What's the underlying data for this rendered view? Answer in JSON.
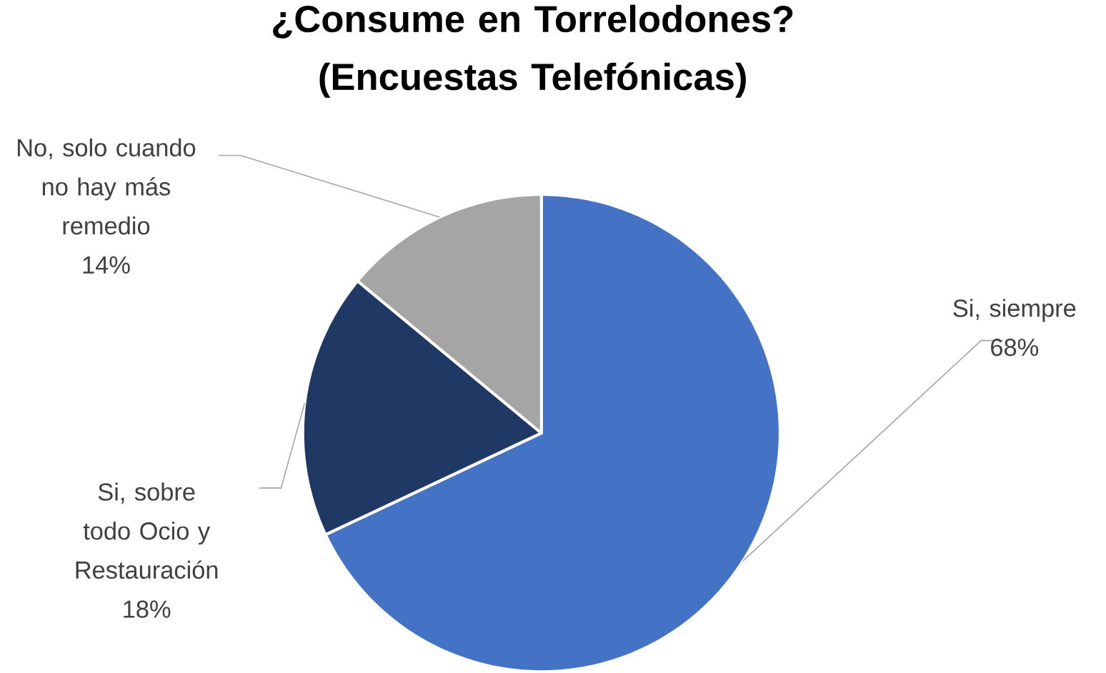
{
  "chart_data": {
    "type": "pie",
    "title": "¿Consume en Torrelodones? (Encuestas Telefónicas)",
    "categories": [
      "Si, siempre",
      "Si, sobre todo Ocio y Restauración",
      "No, solo cuando no hay más remedio"
    ],
    "values": [
      68,
      18,
      14
    ],
    "value_labels": [
      "68%",
      "18%",
      "14%"
    ],
    "colors": [
      "#4472c4",
      "#203864",
      "#a5a5a5"
    ]
  }
}
